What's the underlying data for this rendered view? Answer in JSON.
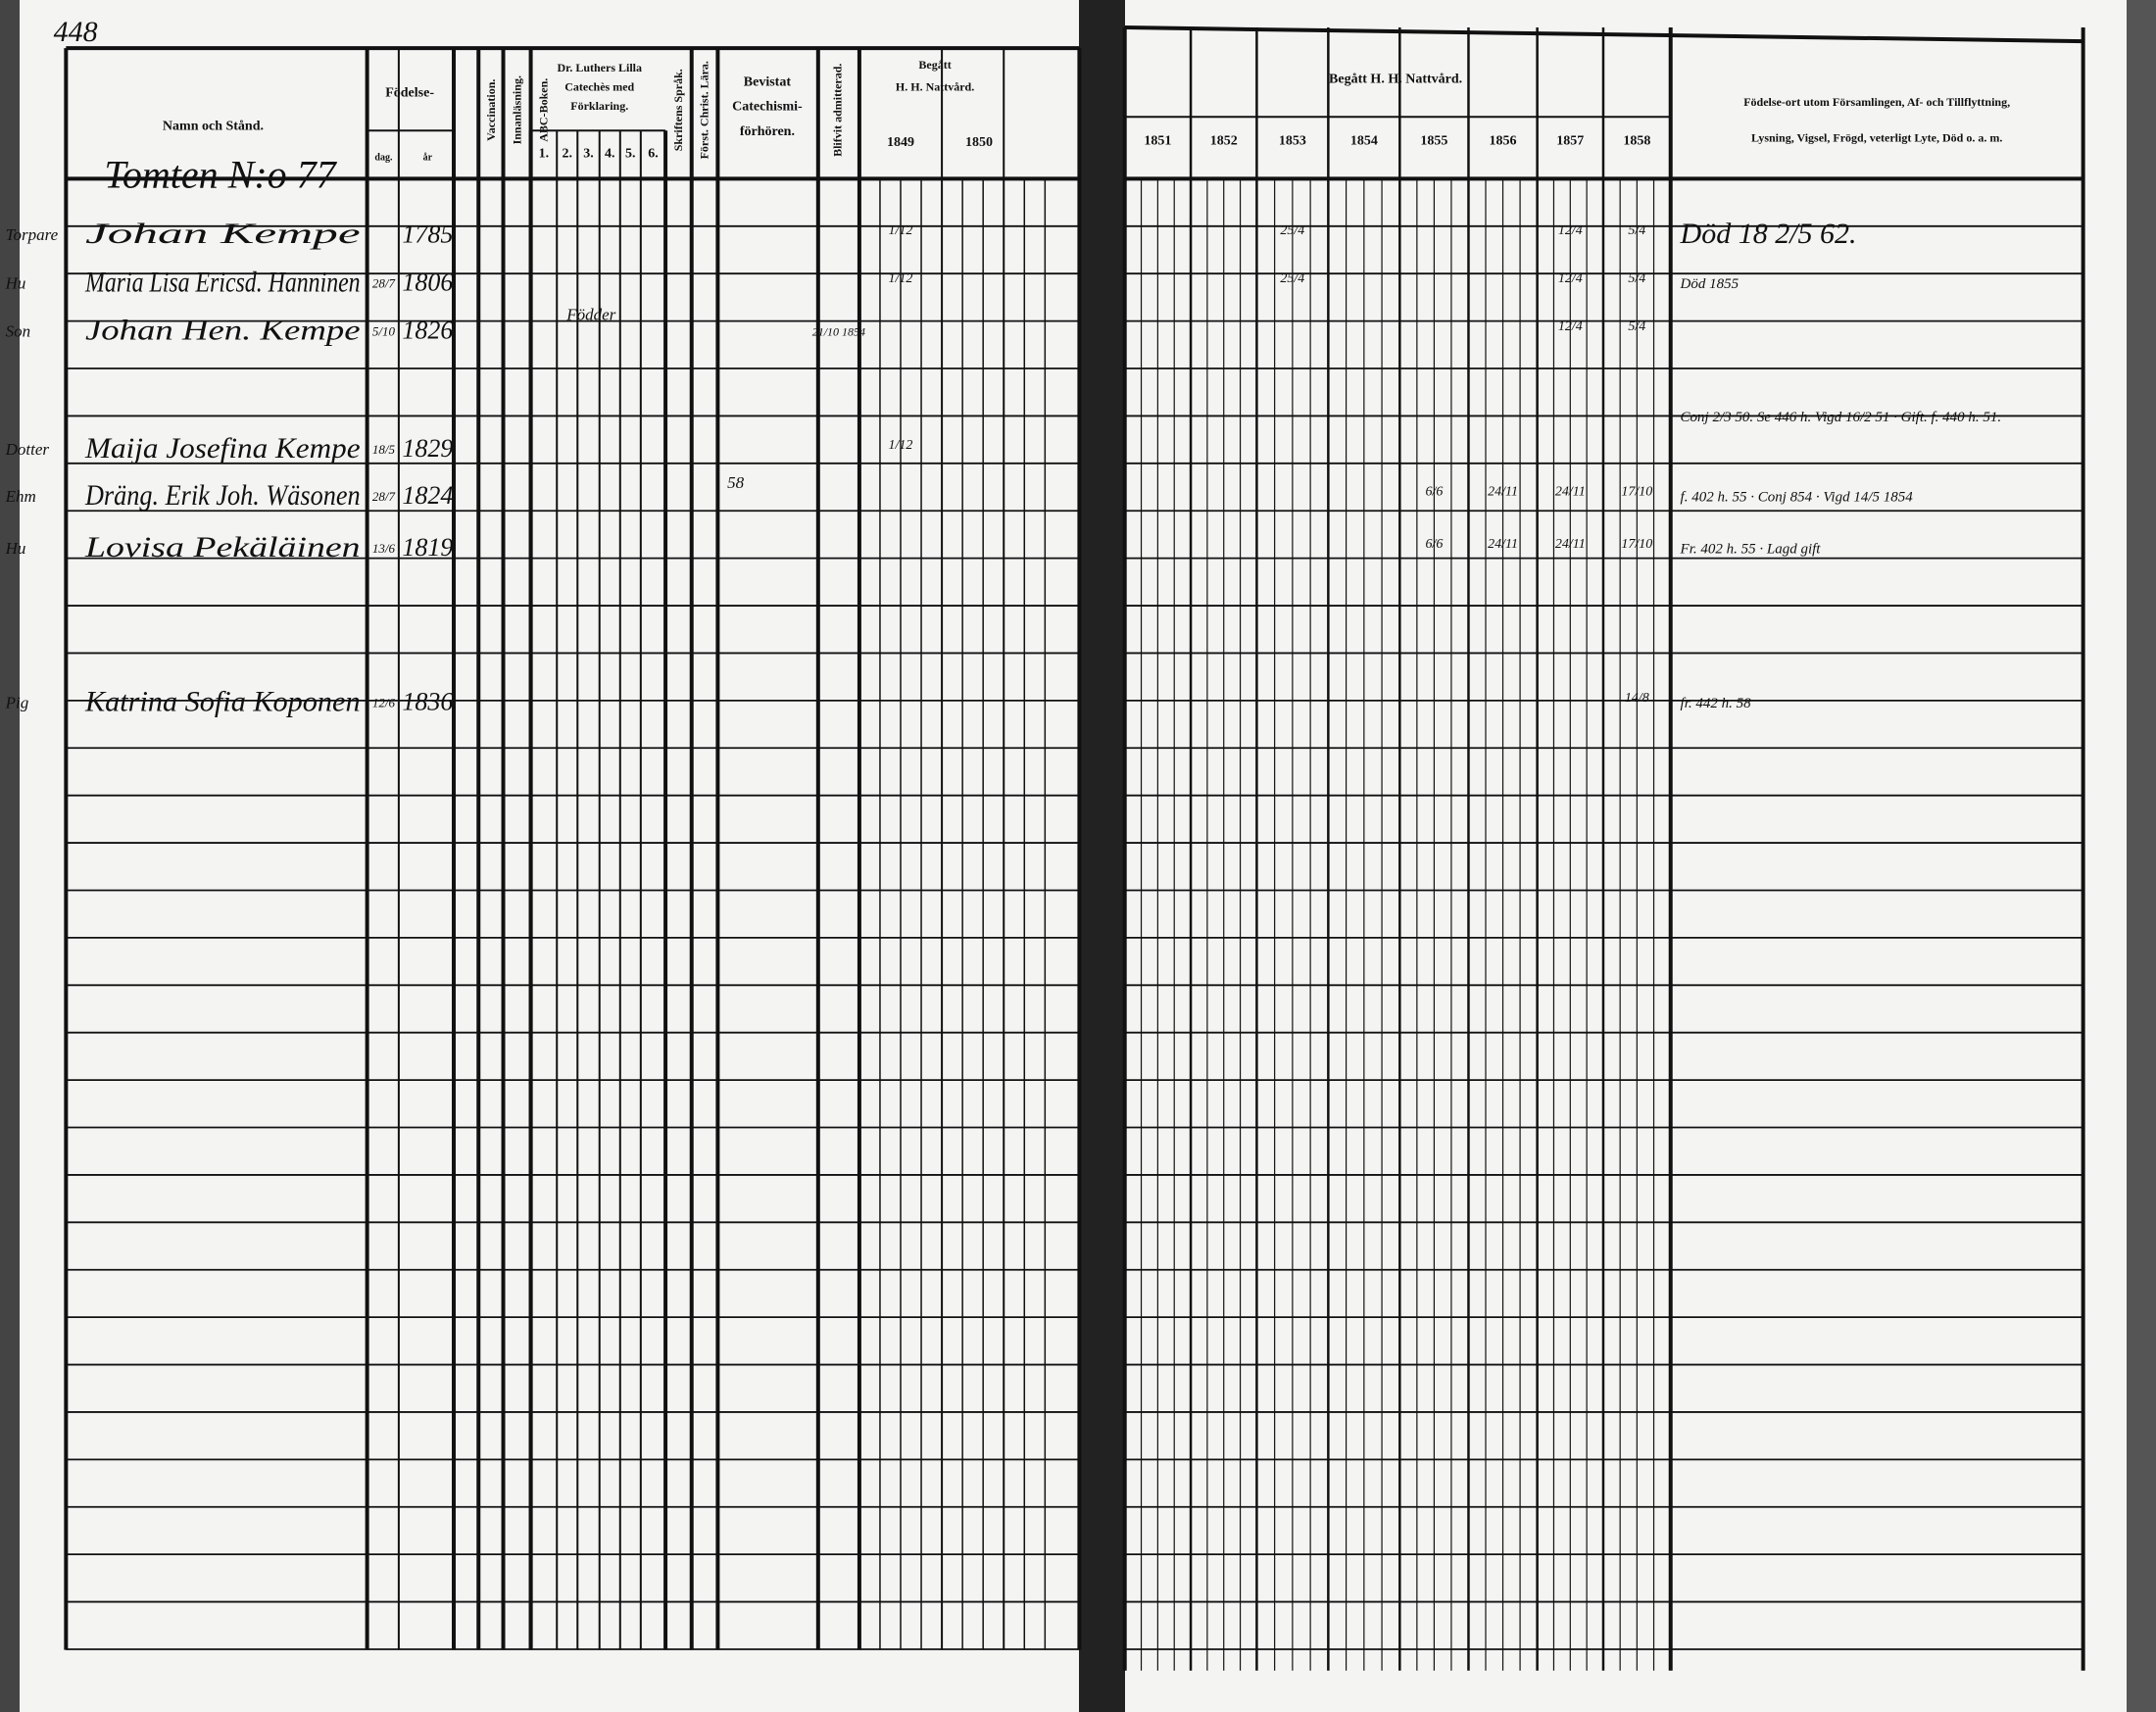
{
  "page_number": "448",
  "left_header": {
    "name": "Namn och Stånd.",
    "birth": "Födelse-",
    "birth_day": "dag.",
    "birth_year": "år",
    "vaccination": "Vaccination.",
    "reading": "Innanläsning.",
    "abc": "ABC-Boken.",
    "luther": [
      "Dr. Luthers Lilla",
      "Catechès med",
      "Förklaring."
    ],
    "luther_parts": [
      "1.",
      "2.",
      "3.",
      "4.",
      "5.",
      "6."
    ],
    "scripture": "Skriftens Språk.",
    "christ": "Först. Christ. Lära.",
    "catechism": [
      "Bevistat",
      "Catechismi-",
      "förhören."
    ],
    "admitted": "Blifvit admitterad.",
    "communion": [
      "Begått",
      "H. H. Nattvård."
    ],
    "years": [
      "1849",
      "1850"
    ]
  },
  "right_header": {
    "communion": "Begått H. H. Nattvård.",
    "years": [
      "1851",
      "1852",
      "1853",
      "1854",
      "1855",
      "1856",
      "1857",
      "1858"
    ],
    "remarks": [
      "Födelse-ort utom Församlingen, Af- och Tillflyttning,",
      "Lysning, Vigsel, Frögd, veterligt Lyte, Död o. a. m."
    ]
  },
  "household": "Tomten N:o 77",
  "rows": [
    {
      "role": "Torpare",
      "name": "Johan Kempe",
      "year": "1785",
      "communion": {
        "1849": "1/12",
        "1853": "25/4",
        "1857": "12/4",
        "1858": "5/4"
      },
      "remark": "Död 18 2/5 62."
    },
    {
      "role": "Hu",
      "name": "Maria Lisa Ericsd. Hanninen",
      "day": "28/7",
      "year": "1806",
      "communion": {
        "1849": "1/12",
        "1853": "25/4",
        "1857": "12/4",
        "1858": "5/4"
      },
      "remark": "Död 1855"
    },
    {
      "role": "Son",
      "name": "Johan Hen. Kempe",
      "day": "5/10",
      "year": "1826",
      "luther": "Födder",
      "admitted": "21/10 1854",
      "communion": {
        "1857": "12/4",
        "1858": "5/4"
      }
    },
    {
      "role": "Dotter",
      "name": "Maija Josefina Kempe",
      "day": "18/5",
      "year": "1829",
      "communion": {
        "1849": "1/12"
      },
      "remark": "Conj 2/3 50. Se 446 h. Vigd 16/2 51 · Gift. f. 440 h. 51."
    },
    {
      "role": "Ehm",
      "name": "Dräng. Erik Joh. Wäsonen",
      "day": "28/7",
      "year": "1824",
      "catechism": "58",
      "communion": {
        "1855": "6/6",
        "1856": "24/11",
        "1857": "24/11",
        "1858": "17/10"
      },
      "remark": "f. 402 h. 55 · Conj 854 · Vigd 14/5 1854"
    },
    {
      "role": "Hu",
      "name": "Lovisa Pekäläinen",
      "day": "13/6",
      "year": "1819",
      "communion": {
        "1855": "6/6",
        "1856": "24/11",
        "1857": "24/11",
        "1858": "17/10"
      },
      "remark": "Fr. 402 h. 55 · Lagd gift"
    },
    {
      "role": "Pig",
      "name": "Katrina Sofia Koponen",
      "day": "12/6",
      "year": "1836",
      "communion": {
        "1858": "14/8"
      },
      "remark": "fr. 442 h. 58"
    }
  ]
}
